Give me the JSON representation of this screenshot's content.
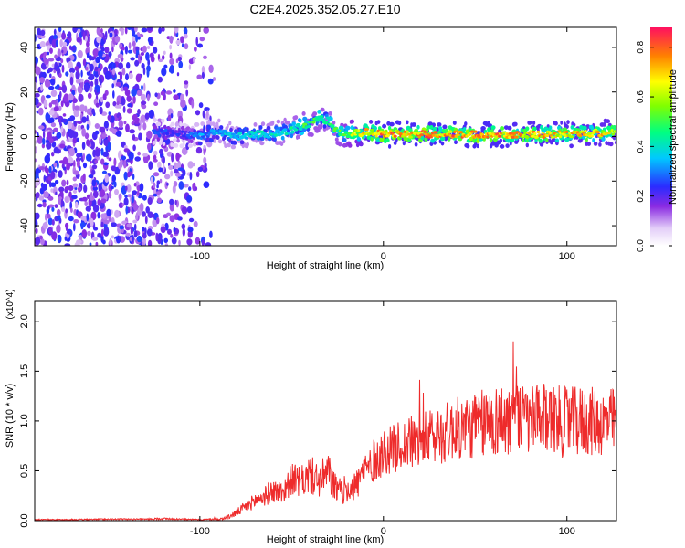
{
  "figure": {
    "title": "C2E4.2025.352.05.27.E10"
  },
  "chart_data": [
    {
      "type": "heatmap",
      "title": "",
      "xlabel": "Height of straight line (km)",
      "ylabel": "Frequency (Hz)",
      "xlim": [
        -190,
        127
      ],
      "ylim": [
        -49,
        49
      ],
      "xticks": [
        -100,
        0,
        100
      ],
      "yticks": [
        -40,
        -20,
        0,
        20,
        40
      ],
      "colorbar": {
        "label": "Normalized spectral amplitude",
        "range": [
          0.0,
          0.88
        ],
        "ticks": [
          0.0,
          0.2,
          0.4,
          0.6,
          0.8
        ]
      },
      "ridge": {
        "x": [
          -125,
          -110,
          -100,
          -90,
          -80,
          -70,
          -60,
          -50,
          -40,
          -35,
          -30,
          -25,
          -20,
          -10,
          0,
          20,
          40,
          60,
          80,
          100,
          127
        ],
        "frequency": [
          2,
          1,
          0,
          2,
          0,
          1,
          1,
          3,
          6,
          8,
          7,
          2,
          1,
          2,
          1,
          1,
          1,
          1,
          1,
          1,
          2
        ],
        "peak_amplitude": [
          0.3,
          0.25,
          0.35,
          0.4,
          0.4,
          0.45,
          0.45,
          0.5,
          0.55,
          0.55,
          0.5,
          0.55,
          0.6,
          0.75,
          0.85,
          0.85,
          0.85,
          0.85,
          0.8,
          0.8,
          0.75
        ]
      },
      "noise_region_x": [
        -190,
        -92
      ]
    },
    {
      "type": "line",
      "title": "",
      "xlabel": "Height of straight line (km)",
      "ylabel": "SNR (10 * v/v)",
      "scale_label": "(x10^4)",
      "xlim": [
        -190,
        127
      ],
      "ylim": [
        0.0,
        2.2
      ],
      "xticks": [
        -100,
        0,
        100
      ],
      "yticks": [
        0.0,
        0.5,
        1.0,
        1.5,
        2.0
      ],
      "series": [
        {
          "name": "SNR",
          "color": "#ee2b2b",
          "x": [
            -190,
            -170,
            -150,
            -130,
            -120,
            -110,
            -100,
            -90,
            -85,
            -80,
            -75,
            -70,
            -65,
            -60,
            -55,
            -50,
            -45,
            -40,
            -35,
            -30,
            -25,
            -20,
            -15,
            -10,
            -5,
            0,
            5,
            10,
            20,
            30,
            40,
            50,
            60,
            70,
            80,
            90,
            100,
            110,
            120,
            127
          ],
          "values": [
            0.01,
            0.01,
            0.015,
            0.015,
            0.02,
            0.015,
            0.01,
            0.015,
            0.03,
            0.08,
            0.14,
            0.2,
            0.24,
            0.3,
            0.28,
            0.42,
            0.38,
            0.46,
            0.4,
            0.48,
            0.28,
            0.32,
            0.35,
            0.52,
            0.6,
            0.68,
            0.72,
            0.76,
            0.8,
            0.86,
            0.92,
            0.95,
            1.0,
            1.02,
            1.0,
            1.02,
            0.98,
            1.0,
            0.98,
            1.0
          ],
          "amplitude": [
            0.005,
            0.005,
            0.006,
            0.006,
            0.01,
            0.006,
            0.005,
            0.01,
            0.02,
            0.04,
            0.06,
            0.08,
            0.1,
            0.12,
            0.12,
            0.16,
            0.16,
            0.2,
            0.18,
            0.2,
            0.14,
            0.14,
            0.16,
            0.2,
            0.22,
            0.24,
            0.24,
            0.26,
            0.28,
            0.3,
            0.32,
            0.34,
            0.36,
            0.38,
            0.36,
            0.36,
            0.36,
            0.36,
            0.34,
            0.34
          ]
        }
      ]
    }
  ]
}
